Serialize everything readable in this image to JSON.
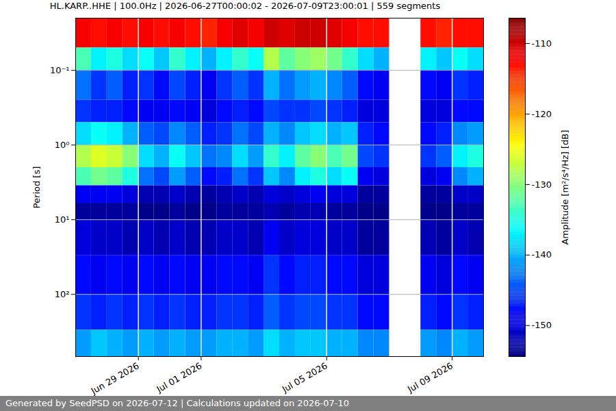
{
  "chart_data": {
    "type": "heatmap",
    "title": "HL.KARP..HHE | 100.0Hz | 2026-06-27T00:00:02 - 2026-07-09T23:00:01 | 559 segments",
    "footer": "Generated by SeedPSD on 2026-07-12 | Calculations updated on 2026-07-10",
    "y_label": "Period [s]",
    "log": "y",
    "grid": true,
    "xlim": [
      "2026-06-27T00:00",
      "2026-07-10T00:00"
    ],
    "xticks": [
      {
        "value": "2026-06-29T00:00",
        "label": "Jun 29 2026"
      },
      {
        "value": "2026-07-01T00:00",
        "label": "Jul 01 2026"
      },
      {
        "value": "2026-07-05T00:00",
        "label": "Jul 05 2026"
      },
      {
        "value": "2026-07-09T00:00",
        "label": "Jul 09 2026"
      }
    ],
    "ylim": [
      0.02,
      680
    ],
    "yticks": [
      {
        "value": 0.1,
        "label": "10⁻¹"
      },
      {
        "value": 1,
        "label": "10⁰"
      },
      {
        "value": 10,
        "label": "10¹"
      },
      {
        "value": 100,
        "label": "10²"
      }
    ],
    "time_edges": [
      "2026-06-27T00:00",
      "2026-06-27T12:00",
      "2026-06-28T00:00",
      "2026-06-28T12:00",
      "2026-06-29T00:00",
      "2026-06-29T12:00",
      "2026-06-30T00:00",
      "2026-06-30T12:00",
      "2026-07-01T00:00",
      "2026-07-01T12:00",
      "2026-07-02T00:00",
      "2026-07-02T12:00",
      "2026-07-03T00:00",
      "2026-07-03T12:00",
      "2026-07-04T00:00",
      "2026-07-04T12:00",
      "2026-07-05T00:00",
      "2026-07-05T12:00",
      "2026-07-06T00:00",
      "2026-07-06T12:00",
      "2026-07-07T00:00",
      "2026-07-07T12:00",
      "2026-07-08T00:00",
      "2026-07-08T12:00",
      "2026-07-09T00:00",
      "2026-07-09T12:00",
      "2026-07-10T00:00"
    ],
    "period_edges": [
      0.02,
      0.05,
      0.1,
      0.25,
      0.5,
      1,
      2,
      3.5,
      6,
      10,
      30,
      100,
      300,
      680
    ],
    "cells": [
      [
        -112,
        -113,
        -112,
        -113,
        -112,
        -113,
        -112,
        -113,
        -114,
        -112,
        -111,
        -112,
        -110,
        -111,
        -110,
        -110,
        -111,
        -112,
        -113,
        -113,
        null,
        null,
        -113,
        -114,
        -113,
        -113
      ],
      [
        -133,
        -137,
        -135,
        -138,
        -136,
        -139,
        -134,
        -137,
        -140,
        -137,
        -134,
        -136,
        -128,
        -132,
        -130,
        -129,
        -131,
        -134,
        -138,
        -140,
        null,
        null,
        -137,
        -139,
        -136,
        -138
      ],
      [
        -143,
        -146,
        -144,
        -147,
        -146,
        -148,
        -145,
        -147,
        -149,
        -146,
        -144,
        -146,
        -140,
        -143,
        -141,
        -140,
        -142,
        -144,
        -148,
        -149,
        null,
        null,
        -148,
        -149,
        -146,
        -147
      ],
      [
        -146,
        -147,
        -147,
        -148,
        -149,
        -149,
        -148,
        -149,
        -150,
        -148,
        -147,
        -148,
        -145,
        -146,
        -146,
        -145,
        -146,
        -147,
        -150,
        -150,
        null,
        null,
        -150,
        -150,
        -148,
        -148
      ],
      [
        -138,
        -136,
        -137,
        -140,
        -144,
        -145,
        -142,
        -144,
        -147,
        -146,
        -143,
        -145,
        -140,
        -142,
        -139,
        -138,
        -140,
        -139,
        -147,
        -148,
        null,
        null,
        -148,
        -147,
        -142,
        -141
      ],
      [
        -128,
        -126,
        -127,
        -130,
        -138,
        -140,
        -136,
        -139,
        -143,
        -142,
        -138,
        -141,
        -134,
        -137,
        -132,
        -130,
        -133,
        -131,
        -145,
        -146,
        null,
        null,
        -146,
        -144,
        -137,
        -135
      ],
      [
        -133,
        -131,
        -132,
        -135,
        -143,
        -145,
        -141,
        -144,
        -148,
        -147,
        -143,
        -146,
        -139,
        -142,
        -137,
        -135,
        -138,
        -136,
        -149,
        -150,
        null,
        null,
        -150,
        -149,
        -142,
        -140
      ],
      [
        -149,
        -149,
        -149,
        -150,
        -152,
        -152,
        -151,
        -152,
        -153,
        -152,
        -151,
        -152,
        -150,
        -151,
        -150,
        -149,
        -150,
        -150,
        -153,
        -153,
        null,
        null,
        -153,
        -153,
        -151,
        -151
      ],
      [
        -153,
        -153,
        -153,
        -153,
        -154,
        -154,
        -153,
        -154,
        -154,
        -153,
        -153,
        -153,
        -152,
        -153,
        -152,
        -152,
        -153,
        -153,
        -154,
        -154,
        null,
        null,
        -154,
        -154,
        -153,
        -153
      ],
      [
        -150,
        -151,
        -151,
        -152,
        -151,
        -152,
        -151,
        -152,
        -152,
        -151,
        -151,
        -152,
        -149,
        -151,
        -150,
        -150,
        -151,
        -151,
        -153,
        -153,
        null,
        null,
        -152,
        -153,
        -151,
        -152
      ],
      [
        -148,
        -149,
        -148,
        -149,
        -148,
        -149,
        -148,
        -149,
        -149,
        -148,
        -148,
        -149,
        -146,
        -148,
        -147,
        -147,
        -148,
        -148,
        -150,
        -150,
        null,
        null,
        -149,
        -150,
        -148,
        -149
      ],
      [
        -146,
        -147,
        -146,
        -147,
        -146,
        -147,
        -146,
        -147,
        -147,
        -146,
        -146,
        -147,
        -144,
        -146,
        -145,
        -145,
        -146,
        -146,
        -148,
        -148,
        null,
        null,
        -147,
        -148,
        -146,
        -147
      ],
      [
        -141,
        -139,
        -140,
        -141,
        -140,
        -141,
        -140,
        -141,
        -141,
        -140,
        -140,
        -141,
        -138,
        -140,
        -139,
        -139,
        -140,
        -140,
        -142,
        -142,
        null,
        null,
        -141,
        -142,
        -140,
        -141
      ]
    ],
    "colorbar": {
      "label": "Amplitude [m²/s⁴/Hz] [dB]",
      "lim": [
        -154.4,
        -106.4
      ],
      "ticks": [
        -150,
        -140,
        -130,
        -120,
        -110
      ]
    }
  }
}
